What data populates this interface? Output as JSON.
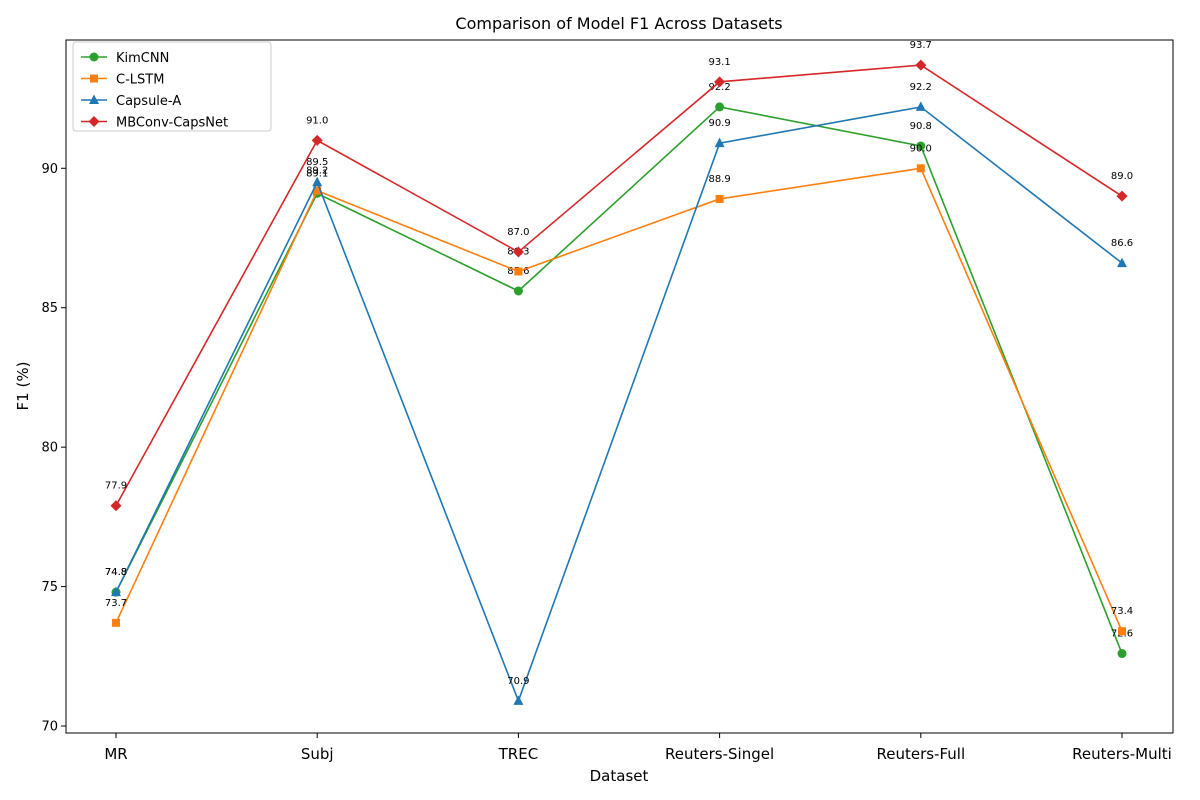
{
  "chart_data": {
    "type": "line",
    "title": "Comparison of Model F1 Across Datasets",
    "xlabel": "Dataset",
    "ylabel": "F1 (%)",
    "categories": [
      "MR",
      "Subj",
      "TREC",
      "Reuters-Singel",
      "Reuters-Full",
      "Reuters-Multi"
    ],
    "ylim": [
      69.75,
      94.6
    ],
    "yticks": [
      70,
      75,
      80,
      85,
      90
    ],
    "ytick_labels": [
      "70",
      "75",
      "80",
      "85",
      "90"
    ],
    "grid": false,
    "legend_position": "top-left",
    "series": [
      {
        "name": "KimCNN",
        "color": "#2ca02c",
        "marker": "circle",
        "values": [
          74.8,
          89.1,
          85.6,
          92.2,
          90.8,
          72.6
        ],
        "labels": [
          "74.8",
          "89.1",
          "85.6",
          "92.2",
          "90.8",
          "72.6"
        ]
      },
      {
        "name": "C-LSTM",
        "color": "#ff7f0e",
        "marker": "square",
        "values": [
          73.7,
          89.2,
          86.3,
          88.9,
          90.0,
          73.4
        ],
        "labels": [
          "73.7",
          "89.2",
          "86.3",
          "88.9",
          "90.0",
          "73.4"
        ]
      },
      {
        "name": "Capsule-A",
        "color": "#1f77b4",
        "marker": "triangle",
        "values": [
          74.8,
          89.5,
          70.9,
          90.9,
          92.2,
          86.6
        ],
        "labels": [
          "74.8",
          "89.5",
          "70.9",
          "90.9",
          "92.2",
          "86.6"
        ]
      },
      {
        "name": "MBConv-CapsNet",
        "color": "#d62728",
        "marker": "diamond",
        "values": [
          77.9,
          91.0,
          87.0,
          93.1,
          93.7,
          89.0
        ],
        "labels": [
          "77.9",
          "91.0",
          "87.0",
          "93.1",
          "93.7",
          "89.0"
        ]
      }
    ]
  }
}
